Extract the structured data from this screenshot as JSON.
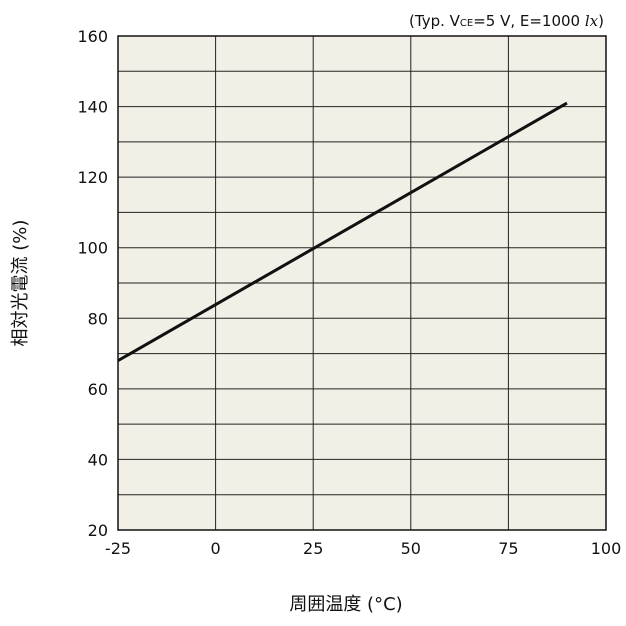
{
  "chart_data": {
    "type": "line",
    "title": "",
    "annotation": {
      "prefix": "(Typ. V",
      "subscript": "CE",
      "middle": "=5 V, E=1000 ",
      "unit": "lx",
      "suffix": ")"
    },
    "xlabel": "周囲温度 (°C)",
    "ylabel": "相対光電流 (%)",
    "xlim": [
      -25,
      100
    ],
    "ylim": [
      20,
      160
    ],
    "x_ticks": [
      -25,
      0,
      25,
      50,
      75,
      100
    ],
    "y_ticks": [
      20,
      40,
      60,
      80,
      100,
      120,
      140,
      160
    ],
    "x_tick_labels": [
      "-25",
      "0",
      "25",
      "50",
      "75",
      "100"
    ],
    "y_tick_labels": [
      "20",
      "40",
      "60",
      "80",
      "100",
      "120",
      "140",
      "160"
    ],
    "x_grid_step": 25,
    "y_grid_step": 10,
    "grid": true,
    "plot_background": "#f2f0e6",
    "line_color": "#111111",
    "series": [
      {
        "x": [
          -25,
          90
        ],
        "y": [
          68,
          141
        ]
      }
    ]
  }
}
